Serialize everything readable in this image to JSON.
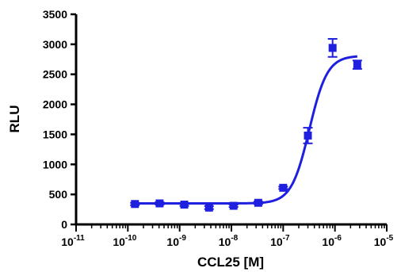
{
  "chart_data": {
    "type": "scatter",
    "title": "",
    "xlabel": "CCL25 [M]",
    "ylabel": "RLU",
    "x_scale": "log",
    "xlim": [
      1e-11,
      1e-05
    ],
    "ylim": [
      0,
      3500
    ],
    "x_ticks": [
      {
        "base": "10",
        "exp": "-11"
      },
      {
        "base": "10",
        "exp": "-10"
      },
      {
        "base": "10",
        "exp": "-9"
      },
      {
        "base": "10",
        "exp": "-8"
      },
      {
        "base": "10",
        "exp": "-7"
      },
      {
        "base": "10",
        "exp": "-6"
      },
      {
        "base": "10",
        "exp": "-5"
      }
    ],
    "y_ticks": [
      "0",
      "500",
      "1000",
      "1500",
      "2000",
      "2500",
      "3000",
      "3500"
    ],
    "grid": false,
    "marker_color": "#1f1fe0",
    "series": [
      {
        "marker": "square",
        "points": [
          {
            "x": 1.37e-10,
            "y": 340,
            "err": 20
          },
          {
            "x": 4.1e-10,
            "y": 350,
            "err": 20
          },
          {
            "x": 1.23e-09,
            "y": 330,
            "err": 20
          },
          {
            "x": 3.7e-09,
            "y": 280,
            "err": 25
          },
          {
            "x": 1.1e-08,
            "y": 310,
            "err": 20
          },
          {
            "x": 3.3e-08,
            "y": 360,
            "err": 20
          },
          {
            "x": 1e-07,
            "y": 610,
            "err": 20
          },
          {
            "x": 3e-07,
            "y": 1480,
            "err": 130
          },
          {
            "x": 9e-07,
            "y": 2940,
            "err": 150
          },
          {
            "x": 2.7e-06,
            "y": 2660,
            "err": 70
          }
        ]
      }
    ],
    "fit_curve": {
      "model": "sigmoidal dose-response",
      "bottom": 350,
      "top": 2810,
      "ec50": 3.2e-07,
      "hill_slope": 2.5,
      "x_range": [
        1.37e-10,
        2.7e-06
      ]
    }
  }
}
